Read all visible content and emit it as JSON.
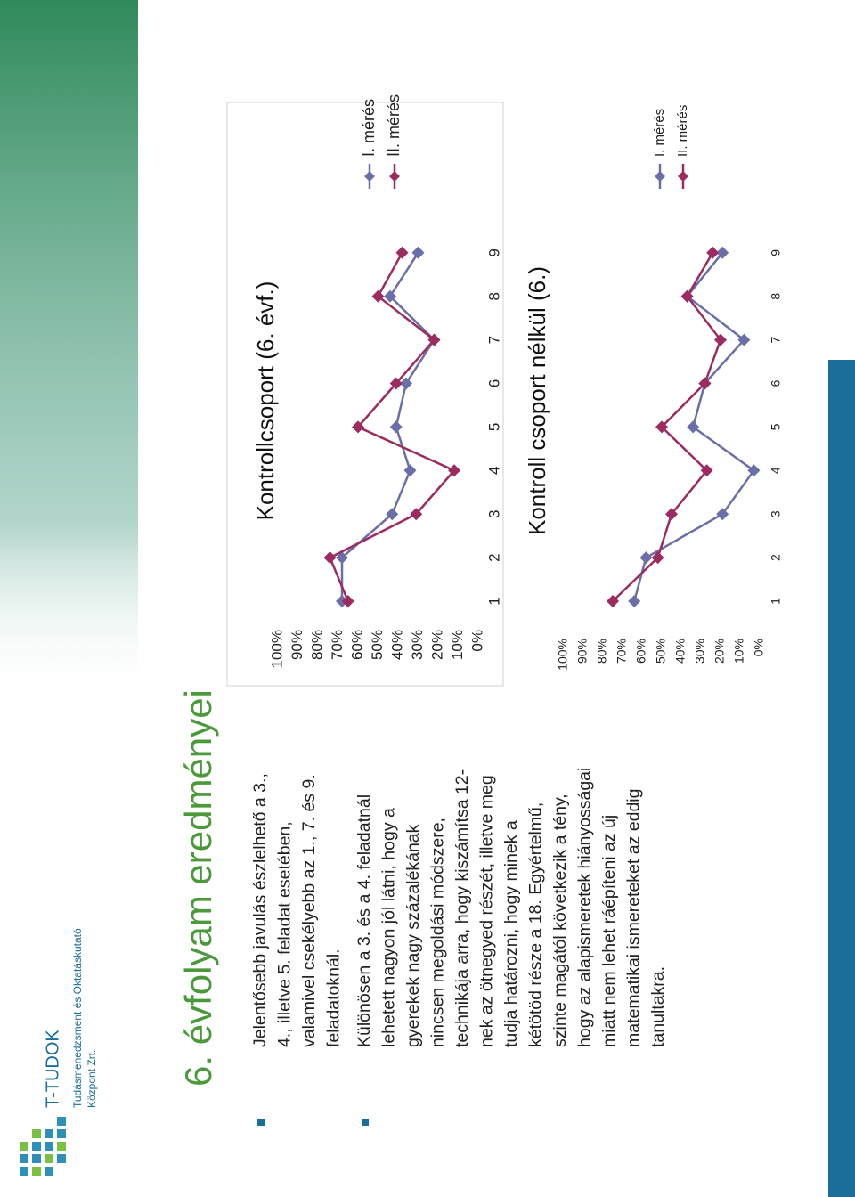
{
  "logo": {
    "name": "T-TUDOK",
    "line1": "Tudásmenedzsment és Oktatáskutató",
    "line2": "Központ Zrt."
  },
  "slide": {
    "title": "6. évfolyam eredményei",
    "bullets": [
      [
        "Jelentősebb javulás észlelhető a 3.,",
        "4., illetve 5. feladat esetében,",
        "valamivel csekélyebb az 1., 7. és 9.",
        "feladatoknál."
      ],
      [
        "Különösen a 3. és a 4. feladatnál",
        "lehetett nagyon jól látni, hogy a",
        "gyerekek nagy százalékának",
        "nincsen megoldási módszere,",
        "technikája arra, hogy kiszámítsa 12-",
        "nek az ötnegyed részét, illetve meg",
        "tudja határozni, hogy minek a",
        "kétötöd része a 18. Egyértelmű,",
        "szinte magától következik a tény,",
        "hogy az alapismeretek hiányosságai",
        "miatt nem lehet ráépíteni az új",
        "matematikai ismereteket az eddig",
        "tanultakra."
      ]
    ]
  },
  "chart_data": [
    {
      "type": "line",
      "title": "Kontrollcsoport (6. évf.)",
      "categories": [
        "1",
        "2",
        "3",
        "4",
        "5",
        "6",
        "7",
        "8",
        "9"
      ],
      "series": [
        {
          "name": "I. mérés",
          "color": "#6a6fa8",
          "values": [
            68,
            68,
            43,
            34,
            41,
            36,
            22,
            44,
            30
          ]
        },
        {
          "name": "II. mérés",
          "color": "#9c2b5f",
          "values": [
            65,
            74,
            31,
            12,
            60,
            41,
            22,
            50,
            38
          ]
        }
      ],
      "ylim": [
        0,
        100
      ],
      "yticks": [
        {
          "value": 0,
          "label": "0%"
        },
        {
          "value": 10,
          "label": "10%"
        },
        {
          "value": 20,
          "label": "20%"
        },
        {
          "value": 30,
          "label": "30%"
        },
        {
          "value": 40,
          "label": "40%"
        },
        {
          "value": 50,
          "label": "50%"
        },
        {
          "value": 60,
          "label": "60%"
        },
        {
          "value": 70,
          "label": "70%"
        },
        {
          "value": 80,
          "label": "80%"
        },
        {
          "value": 90,
          "label": "90%"
        },
        {
          "value": 100,
          "label": "100%"
        }
      ],
      "legend": "right"
    },
    {
      "type": "line",
      "title": "Kontroll csoport nélkül (6.)",
      "categories": [
        "1",
        "2",
        "3",
        "4",
        "5",
        "6",
        "7",
        "8",
        "9"
      ],
      "series": [
        {
          "name": "I. mérés",
          "color": "#6a6fa8",
          "values": [
            64,
            58,
            19,
            3,
            34,
            28,
            8,
            37,
            19
          ]
        },
        {
          "name": "II. mérés",
          "color": "#9c2b5f",
          "values": [
            75,
            52,
            45,
            27,
            50,
            28,
            20,
            37,
            24
          ]
        }
      ],
      "ylim": [
        0,
        100
      ],
      "yticks": [
        {
          "value": 0,
          "label": "0%"
        },
        {
          "value": 10,
          "label": "10%"
        },
        {
          "value": 20,
          "label": "20%"
        },
        {
          "value": 30,
          "label": "30%"
        },
        {
          "value": 40,
          "label": "40%"
        },
        {
          "value": 50,
          "label": "50%"
        },
        {
          "value": 60,
          "label": "60%"
        },
        {
          "value": 70,
          "label": "70%"
        },
        {
          "value": 80,
          "label": "80%"
        },
        {
          "value": 90,
          "label": "90%"
        },
        {
          "value": 100,
          "label": "100%"
        }
      ],
      "legend": "right"
    }
  ]
}
